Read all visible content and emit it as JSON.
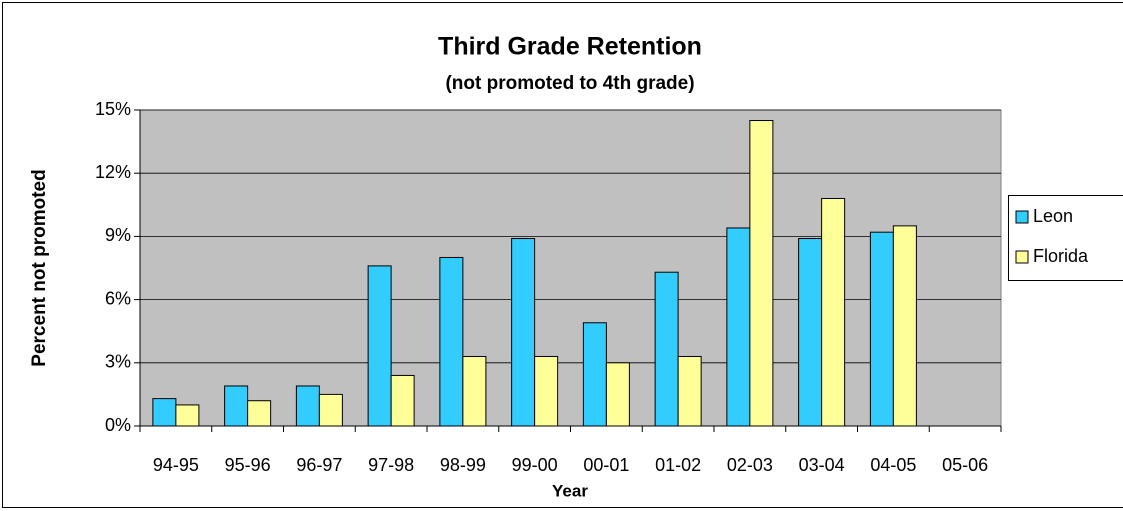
{
  "chart_data": {
    "type": "bar",
    "title": "Third Grade Retention",
    "subtitle": "(not promoted to 4th grade)",
    "x_label": "Year",
    "y_label": "Percent not promoted",
    "categories": [
      "94-95",
      "95-96",
      "96-97",
      "97-98",
      "98-99",
      "99-00",
      "00-01",
      "01-02",
      "02-03",
      "03-04",
      "04-05",
      "05-06"
    ],
    "series": [
      {
        "name": "Leon",
        "color": "#33ccff",
        "values": [
          1.3,
          1.9,
          1.9,
          7.6,
          8.0,
          8.9,
          4.9,
          7.3,
          9.4,
          8.9,
          9.2,
          null
        ]
      },
      {
        "name": "Florida",
        "color": "#ffff99",
        "values": [
          1.0,
          1.2,
          1.5,
          2.4,
          3.3,
          3.3,
          3.0,
          3.3,
          14.5,
          10.8,
          9.5,
          null
        ]
      }
    ],
    "ylim": [
      0,
      15
    ],
    "yticks": [
      {
        "value": 0,
        "label": "0%"
      },
      {
        "value": 3,
        "label": "3%"
      },
      {
        "value": 6,
        "label": "6%"
      },
      {
        "value": 9,
        "label": "9%"
      },
      {
        "value": 12,
        "label": "12%"
      },
      {
        "value": 15,
        "label": "15%"
      }
    ],
    "grid": true,
    "legend": "right"
  }
}
